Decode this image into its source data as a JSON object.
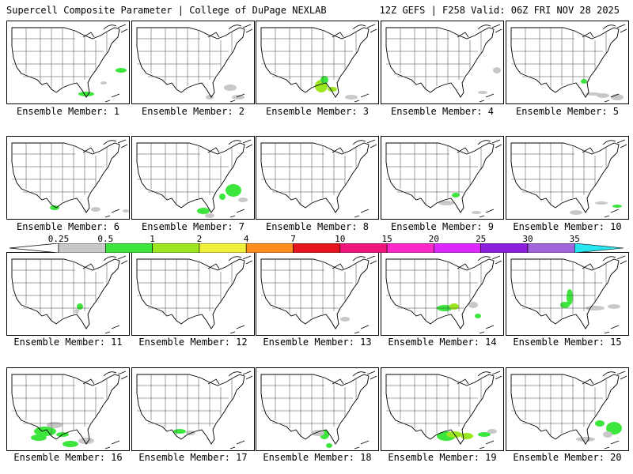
{
  "header": {
    "left": "Supercell Composite Parameter | College of DuPage NEXLAB",
    "right": "12Z GEFS | F258 Valid: 06Z FRI NOV 28 2025"
  },
  "legend": {
    "ticks": [
      "0.25",
      "0.5",
      "1",
      "2",
      "4",
      "7",
      "10",
      "15",
      "20",
      "25",
      "30",
      "35"
    ],
    "colors": [
      "#c8c8c8",
      "#3ce63c",
      "#9be61e",
      "#f0f03c",
      "#ff8c1e",
      "#e6141e",
      "#f0147d",
      "#ff28c8",
      "#dc28ff",
      "#8c1edc",
      "#a064dc",
      "#28e6f0"
    ]
  },
  "members": [
    {
      "caption": "Ensemble Member: 1"
    },
    {
      "caption": "Ensemble Member: 2"
    },
    {
      "caption": "Ensemble Member: 3"
    },
    {
      "caption": "Ensemble Member: 4"
    },
    {
      "caption": "Ensemble Member: 5"
    },
    {
      "caption": "Ensemble Member: 6"
    },
    {
      "caption": "Ensemble Member: 7"
    },
    {
      "caption": "Ensemble Member: 8"
    },
    {
      "caption": "Ensemble Member: 9"
    },
    {
      "caption": "Ensemble Member: 10"
    },
    {
      "caption": "Ensemble Member: 11"
    },
    {
      "caption": "Ensemble Member: 12"
    },
    {
      "caption": "Ensemble Member: 13"
    },
    {
      "caption": "Ensemble Member: 14"
    },
    {
      "caption": "Ensemble Member: 15"
    },
    {
      "caption": "Ensemble Member: 16"
    },
    {
      "caption": "Ensemble Member: 17"
    },
    {
      "caption": "Ensemble Member: 18"
    },
    {
      "caption": "Ensemble Member: 19"
    },
    {
      "caption": "Ensemble Member: 20"
    }
  ]
}
